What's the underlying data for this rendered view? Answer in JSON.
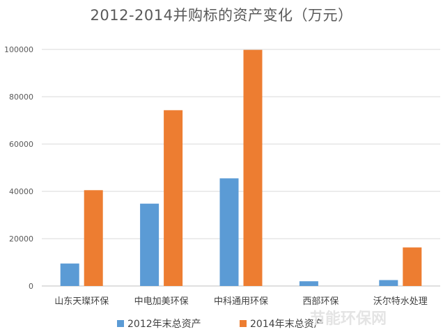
{
  "chart_data": {
    "type": "bar",
    "title": "2012-2014并购标的资产变化（万元）",
    "categories": [
      "山东天璨环保",
      "中电加美环保",
      "中科通用环保",
      "西部环保",
      "沃尔特水处理"
    ],
    "series": [
      {
        "name": "2012年末总资产",
        "color": "#5B9BD5",
        "values": [
          9500,
          34800,
          45500,
          2000,
          2500
        ]
      },
      {
        "name": "2014年末总资产",
        "color": "#ED7D31",
        "values": [
          40500,
          74300,
          99800,
          0,
          16300
        ]
      }
    ],
    "ylim": [
      0,
      100000
    ],
    "yticks": [
      0,
      20000,
      40000,
      60000,
      80000,
      100000
    ],
    "grid": true,
    "legend": "bottom"
  },
  "watermark": "节能环保网"
}
